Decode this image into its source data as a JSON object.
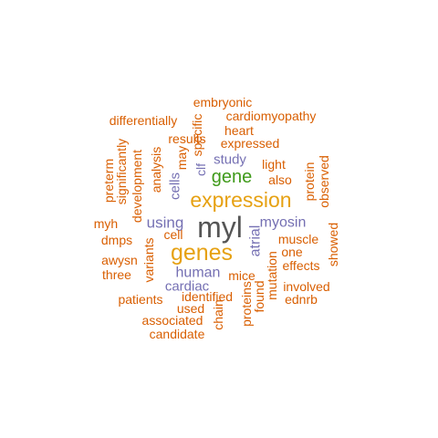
{
  "palette": {
    "orange": "#d95f02",
    "purple": "#7570b3",
    "green": "#3f9a1a",
    "gold": "#e6a112",
    "gray": "#555555"
  },
  "words": [
    {
      "text": "myl",
      "color": "#555555"
    },
    {
      "text": "expression",
      "color": "#e6a112"
    },
    {
      "text": "genes",
      "color": "#e6a112"
    },
    {
      "text": "gene",
      "color": "#3f9a1a"
    },
    {
      "text": "using",
      "color": "#7570b3"
    },
    {
      "text": "myosin",
      "color": "#7570b3"
    },
    {
      "text": "human",
      "color": "#7570b3"
    },
    {
      "text": "study",
      "color": "#7570b3"
    },
    {
      "text": "cardiac",
      "color": "#7570b3"
    },
    {
      "text": "atrial",
      "color": "#7570b3"
    },
    {
      "text": "cells",
      "color": "#7570b3"
    },
    {
      "text": "clf",
      "color": "#7570b3"
    },
    {
      "text": "embryonic",
      "color": "#d95f02"
    },
    {
      "text": "cardiomyopathy",
      "color": "#d95f02"
    },
    {
      "text": "differentially",
      "color": "#d95f02"
    },
    {
      "text": "heart",
      "color": "#d95f02"
    },
    {
      "text": "results",
      "color": "#d95f02"
    },
    {
      "text": "expressed",
      "color": "#d95f02"
    },
    {
      "text": "specific",
      "color": "#d95f02"
    },
    {
      "text": "may",
      "color": "#d95f02"
    },
    {
      "text": "significantly",
      "color": "#d95f02"
    },
    {
      "text": "preterm",
      "color": "#d95f02"
    },
    {
      "text": "development",
      "color": "#d95f02"
    },
    {
      "text": "analysis",
      "color": "#d95f02"
    },
    {
      "text": "light",
      "color": "#d95f02"
    },
    {
      "text": "also",
      "color": "#d95f02"
    },
    {
      "text": "protein",
      "color": "#d95f02"
    },
    {
      "text": "observed",
      "color": "#d95f02"
    },
    {
      "text": "myh",
      "color": "#d95f02"
    },
    {
      "text": "cell",
      "color": "#d95f02"
    },
    {
      "text": "dmps",
      "color": "#d95f02"
    },
    {
      "text": "variants",
      "color": "#d95f02"
    },
    {
      "text": "muscle",
      "color": "#d95f02"
    },
    {
      "text": "one",
      "color": "#d95f02"
    },
    {
      "text": "showed",
      "color": "#d95f02"
    },
    {
      "text": "awysn",
      "color": "#d95f02"
    },
    {
      "text": "three",
      "color": "#d95f02"
    },
    {
      "text": "mice",
      "color": "#d95f02"
    },
    {
      "text": "effects",
      "color": "#d95f02"
    },
    {
      "text": "involved",
      "color": "#d95f02"
    },
    {
      "text": "mutation",
      "color": "#d95f02"
    },
    {
      "text": "patients",
      "color": "#d95f02"
    },
    {
      "text": "identified",
      "color": "#d95f02"
    },
    {
      "text": "ednrb",
      "color": "#d95f02"
    },
    {
      "text": "used",
      "color": "#d95f02"
    },
    {
      "text": "found",
      "color": "#d95f02"
    },
    {
      "text": "proteins",
      "color": "#d95f02"
    },
    {
      "text": "associated",
      "color": "#d95f02"
    },
    {
      "text": "chain",
      "color": "#d95f02"
    },
    {
      "text": "candidate",
      "color": "#d95f02"
    }
  ]
}
